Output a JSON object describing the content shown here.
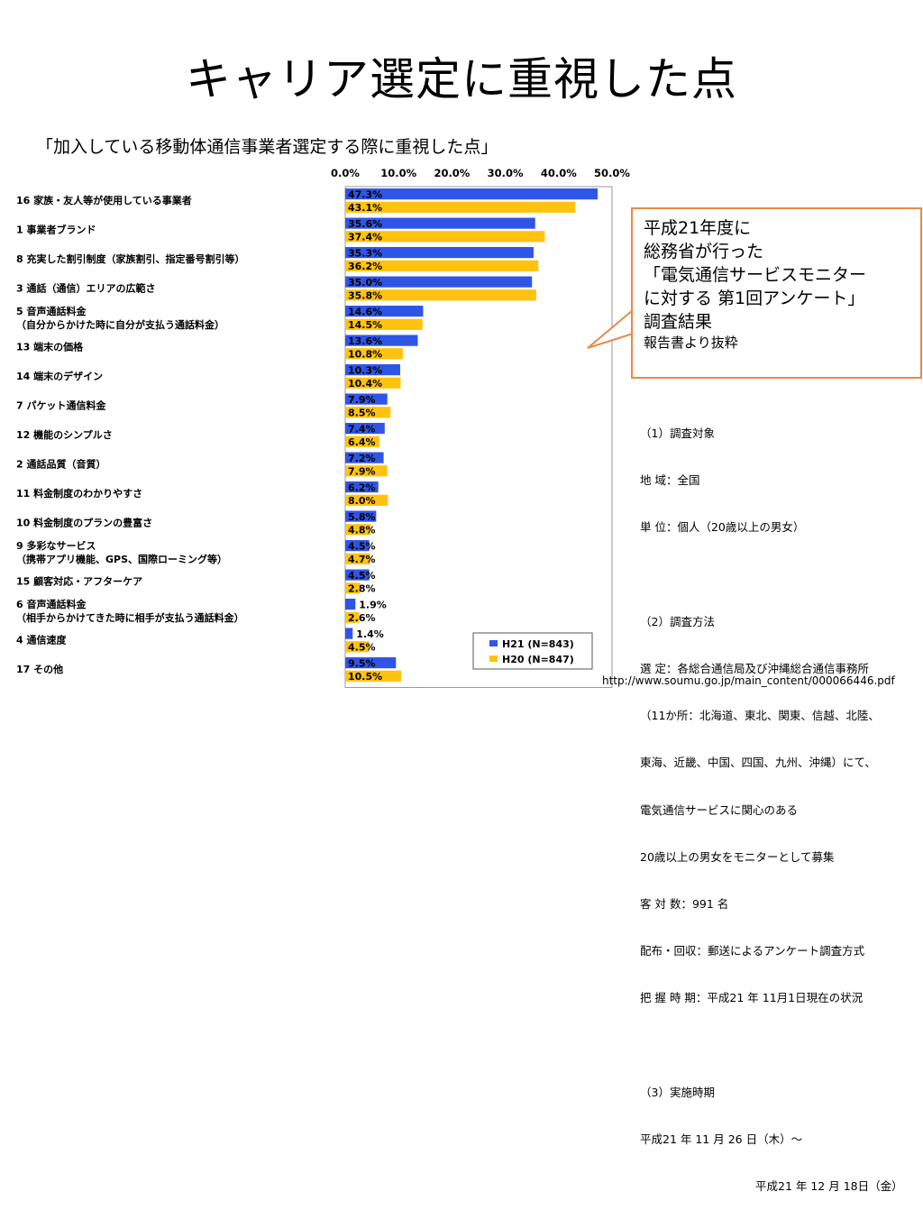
{
  "title": "キャリア選定に重視した点",
  "subtitle": "「加入している移動体通信事業者選定する際に重視した点」",
  "callout": {
    "lines": [
      "平成21年度に",
      "総務省が行った",
      "「電気通信サービスモニター",
      "に対する 第1回アンケート」",
      "調査結果"
    ],
    "note": "報告書より抜粋"
  },
  "survey_info": {
    "lines": [
      "（1）調査対象",
      "地 域：全国",
      "単 位：個人（20歳以上の男女）",
      "",
      "（2）調査方法",
      "選 定：各総合通信局及び沖縄総合通信事務所",
      "（11か所：北海道、東北、関東、信越、北陸、",
      "東海、近畿、中国、四国、九州、沖縄）にて、",
      "電気通信サービスに関心のある",
      "20歳以上の男女をモニターとして募集",
      "客 対 数：991 名",
      "配布・回収：郵送によるアンケート調査方式",
      "把 握 時 期：平成21 年 11月1日現在の状況",
      "",
      "（3）実施時期",
      "平成21 年 11 月 26 日（木）～"
    ],
    "last_line": "平成21 年 12 月 18日（金）"
  },
  "source_url": "http://www.soumu.go.jp/main_content/000066446.pdf",
  "colors": {
    "h21": "#2F55E8",
    "h20": "#FFC20E",
    "callout_border": "#E8894A"
  },
  "chart_data": {
    "type": "bar",
    "orientation": "horizontal",
    "xlim": [
      0,
      50
    ],
    "x_ticks": [
      "0.0%",
      "10.0%",
      "20.0%",
      "30.0%",
      "40.0%",
      "50.0%"
    ],
    "categories": [
      [
        "16 家族・友人等が使用している事業者"
      ],
      [
        "1 事業者ブランド"
      ],
      [
        "8 充実した割引制度（家族割引、指定番号割引等）"
      ],
      [
        "3 通話（通信）エリアの広範さ"
      ],
      [
        "5 音声通話料金",
        "（自分からかけた時に自分が支払う通話料金）"
      ],
      [
        "13 端末の価格"
      ],
      [
        "14 端末のデザイン"
      ],
      [
        "7 パケット通信料金"
      ],
      [
        "12 機能のシンプルさ"
      ],
      [
        "2 通話品質（音質）"
      ],
      [
        "11 料金制度のわかりやすさ"
      ],
      [
        "10 料金制度のプランの豊富さ"
      ],
      [
        "9 多彩なサービス",
        "（携帯アプリ機能、GPS、国際ローミング等）"
      ],
      [
        "15 顧客対応・アフターケア"
      ],
      [
        "6 音声通話料金",
        "（相手からかけてきた時に相手が支払う通話料金）"
      ],
      [
        "4 通信速度"
      ],
      [
        "17 その他"
      ]
    ],
    "series": [
      {
        "name": "H21 (N=843)",
        "values": [
          47.3,
          35.6,
          35.3,
          35.0,
          14.6,
          13.6,
          10.3,
          7.9,
          7.4,
          7.2,
          6.2,
          5.8,
          4.5,
          4.5,
          1.9,
          1.4,
          9.5
        ]
      },
      {
        "name": "H20 (N=847)",
        "values": [
          43.1,
          37.4,
          36.2,
          35.8,
          14.5,
          10.8,
          10.4,
          8.5,
          6.4,
          7.9,
          8.0,
          4.8,
          4.7,
          2.8,
          2.6,
          4.5,
          10.5
        ]
      }
    ],
    "legend_position": "bottom-right"
  }
}
